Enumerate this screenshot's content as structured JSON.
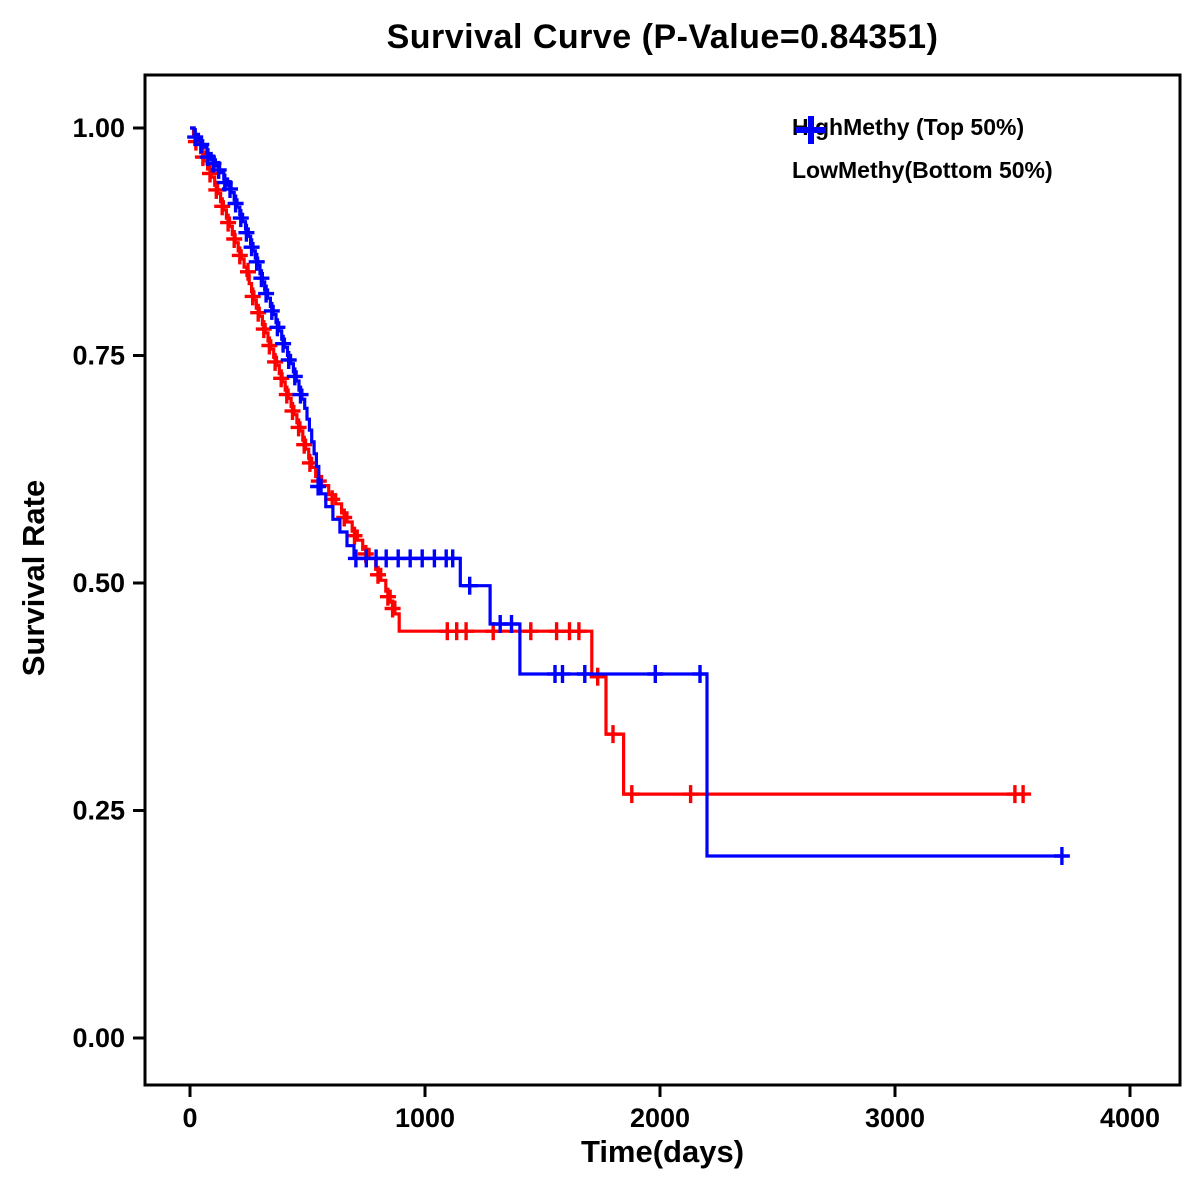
{
  "figure": {
    "title": "Survival Curve (P-Value=0.84351)",
    "x_label": "Time(days)",
    "y_label": "Survival Rate"
  },
  "legend": {
    "items": [
      {
        "label": "HighMethy (Top 50%)",
        "color": "#ff0000",
        "marker": "plus-icon"
      },
      {
        "label": "LowMethy(Bottom 50%)",
        "color": "#0000ff",
        "marker": "plus-icon"
      }
    ]
  },
  "chart_data": {
    "type": "line",
    "subtype": "kaplan-meier-step",
    "title": "Survival Curve (P-Value=0.84351)",
    "p_value": 0.84351,
    "xlabel": "Time(days)",
    "ylabel": "Survival Rate",
    "xlim": [
      0,
      4000
    ],
    "ylim": [
      0,
      1.0
    ],
    "xticks": [
      0,
      1000,
      2000,
      3000,
      4000
    ],
    "xtick_labels": [
      "0",
      "1000",
      "2000",
      "3000",
      "4000"
    ],
    "yticks": [
      0.0,
      0.25,
      0.5,
      0.75,
      1.0
    ],
    "ytick_labels": [
      "0.00",
      "0.25",
      "0.50",
      "0.75",
      "1.00"
    ],
    "grid": false,
    "legend_position": "top-right-inside",
    "series": [
      {
        "id": "highmethy",
        "name": "HighMethy (Top 50%)",
        "color": "#ff0000",
        "steps": [
          [
            0,
            1.0
          ],
          [
            15,
            0.991
          ],
          [
            30,
            0.982
          ],
          [
            45,
            0.973
          ],
          [
            60,
            0.964
          ],
          [
            75,
            0.955
          ],
          [
            90,
            0.946
          ],
          [
            105,
            0.937
          ],
          [
            118,
            0.928
          ],
          [
            130,
            0.919
          ],
          [
            142,
            0.91
          ],
          [
            155,
            0.901
          ],
          [
            168,
            0.892
          ],
          [
            180,
            0.883
          ],
          [
            192,
            0.874
          ],
          [
            205,
            0.865
          ],
          [
            218,
            0.856
          ],
          [
            230,
            0.847
          ],
          [
            242,
            0.838
          ],
          [
            252,
            0.829
          ],
          [
            262,
            0.82
          ],
          [
            272,
            0.811
          ],
          [
            282,
            0.802
          ],
          [
            295,
            0.793
          ],
          [
            308,
            0.784
          ],
          [
            320,
            0.775
          ],
          [
            332,
            0.766
          ],
          [
            344,
            0.757
          ],
          [
            356,
            0.748
          ],
          [
            368,
            0.739
          ],
          [
            380,
            0.73
          ],
          [
            392,
            0.721
          ],
          [
            405,
            0.712
          ],
          [
            418,
            0.703
          ],
          [
            430,
            0.694
          ],
          [
            442,
            0.685
          ],
          [
            455,
            0.676
          ],
          [
            468,
            0.667
          ],
          [
            480,
            0.657
          ],
          [
            492,
            0.647
          ],
          [
            505,
            0.637
          ],
          [
            518,
            0.627
          ],
          [
            535,
            0.617
          ],
          [
            560,
            0.607
          ],
          [
            590,
            0.597
          ],
          [
            620,
            0.587
          ],
          [
            645,
            0.577
          ],
          [
            668,
            0.567
          ],
          [
            690,
            0.557
          ],
          [
            712,
            0.547
          ],
          [
            735,
            0.537
          ],
          [
            762,
            0.527
          ],
          [
            790,
            0.515
          ],
          [
            812,
            0.503
          ],
          [
            833,
            0.491
          ],
          [
            852,
            0.479
          ],
          [
            872,
            0.466
          ],
          [
            890,
            0.447
          ],
          [
            1710,
            0.397
          ],
          [
            1770,
            0.334
          ],
          [
            1845,
            0.268
          ],
          [
            3560,
            0.268
          ]
        ],
        "censors": [
          [
            25,
            0.985
          ],
          [
            55,
            0.968
          ],
          [
            85,
            0.95
          ],
          [
            112,
            0.932
          ],
          [
            137,
            0.914
          ],
          [
            162,
            0.896
          ],
          [
            188,
            0.878
          ],
          [
            212,
            0.86
          ],
          [
            247,
            0.842
          ],
          [
            267,
            0.815
          ],
          [
            290,
            0.797
          ],
          [
            314,
            0.779
          ],
          [
            338,
            0.761
          ],
          [
            362,
            0.743
          ],
          [
            388,
            0.725
          ],
          [
            412,
            0.707
          ],
          [
            436,
            0.689
          ],
          [
            462,
            0.671
          ],
          [
            486,
            0.652
          ],
          [
            510,
            0.632
          ],
          [
            548,
            0.612
          ],
          [
            605,
            0.592
          ],
          [
            656,
            0.572
          ],
          [
            700,
            0.552
          ],
          [
            748,
            0.532
          ],
          [
            800,
            0.509
          ],
          [
            842,
            0.485
          ],
          [
            862,
            0.472
          ],
          [
            1095,
            0.447
          ],
          [
            1135,
            0.447
          ],
          [
            1175,
            0.447
          ],
          [
            1290,
            0.447
          ],
          [
            1450,
            0.447
          ],
          [
            1560,
            0.447
          ],
          [
            1615,
            0.447
          ],
          [
            1655,
            0.447
          ],
          [
            1735,
            0.397
          ],
          [
            1800,
            0.334
          ],
          [
            1880,
            0.268
          ],
          [
            2130,
            0.268
          ],
          [
            3510,
            0.268
          ],
          [
            3545,
            0.268
          ]
        ]
      },
      {
        "id": "lowmethy",
        "name": "LowMethy(Bottom 50%)",
        "color": "#0000ff",
        "steps": [
          [
            0,
            1.0
          ],
          [
            18,
            0.993
          ],
          [
            36,
            0.986
          ],
          [
            54,
            0.979
          ],
          [
            72,
            0.972
          ],
          [
            90,
            0.965
          ],
          [
            108,
            0.958
          ],
          [
            126,
            0.951
          ],
          [
            144,
            0.944
          ],
          [
            160,
            0.937
          ],
          [
            175,
            0.929
          ],
          [
            188,
            0.921
          ],
          [
            200,
            0.913
          ],
          [
            212,
            0.905
          ],
          [
            224,
            0.897
          ],
          [
            236,
            0.889
          ],
          [
            248,
            0.881
          ],
          [
            258,
            0.873
          ],
          [
            268,
            0.865
          ],
          [
            278,
            0.857
          ],
          [
            288,
            0.849
          ],
          [
            298,
            0.84
          ],
          [
            308,
            0.831
          ],
          [
            318,
            0.822
          ],
          [
            330,
            0.813
          ],
          [
            342,
            0.804
          ],
          [
            354,
            0.795
          ],
          [
            366,
            0.786
          ],
          [
            378,
            0.777
          ],
          [
            390,
            0.768
          ],
          [
            402,
            0.759
          ],
          [
            415,
            0.75
          ],
          [
            428,
            0.741
          ],
          [
            440,
            0.732
          ],
          [
            452,
            0.722
          ],
          [
            464,
            0.712
          ],
          [
            476,
            0.702
          ],
          [
            488,
            0.692
          ],
          [
            498,
            0.68
          ],
          [
            508,
            0.668
          ],
          [
            518,
            0.655
          ],
          [
            528,
            0.642
          ],
          [
            538,
            0.628
          ],
          [
            548,
            0.613
          ],
          [
            558,
            0.598
          ],
          [
            578,
            0.584
          ],
          [
            608,
            0.57
          ],
          [
            638,
            0.556
          ],
          [
            668,
            0.541
          ],
          [
            698,
            0.527
          ],
          [
            1150,
            0.497
          ],
          [
            1277,
            0.455
          ],
          [
            1404,
            0.4
          ],
          [
            2200,
            0.2
          ],
          [
            3720,
            0.2
          ]
        ],
        "censors": [
          [
            22,
            0.99
          ],
          [
            48,
            0.982
          ],
          [
            76,
            0.968
          ],
          [
            100,
            0.961
          ],
          [
            122,
            0.954
          ],
          [
            148,
            0.94
          ],
          [
            170,
            0.933
          ],
          [
            194,
            0.917
          ],
          [
            216,
            0.901
          ],
          [
            240,
            0.885
          ],
          [
            262,
            0.869
          ],
          [
            284,
            0.853
          ],
          [
            304,
            0.835
          ],
          [
            324,
            0.818
          ],
          [
            348,
            0.799
          ],
          [
            372,
            0.781
          ],
          [
            396,
            0.763
          ],
          [
            420,
            0.745
          ],
          [
            446,
            0.727
          ],
          [
            470,
            0.707
          ],
          [
            545,
            0.606
          ],
          [
            706,
            0.527
          ],
          [
            750,
            0.527
          ],
          [
            792,
            0.527
          ],
          [
            835,
            0.527
          ],
          [
            886,
            0.527
          ],
          [
            937,
            0.527
          ],
          [
            988,
            0.527
          ],
          [
            1040,
            0.527
          ],
          [
            1090,
            0.527
          ],
          [
            1118,
            0.527
          ],
          [
            1190,
            0.497
          ],
          [
            1320,
            0.455
          ],
          [
            1368,
            0.455
          ],
          [
            1553,
            0.4
          ],
          [
            1585,
            0.4
          ],
          [
            1680,
            0.4
          ],
          [
            1980,
            0.4
          ],
          [
            2170,
            0.4
          ],
          [
            3710,
            0.2
          ]
        ]
      }
    ]
  }
}
